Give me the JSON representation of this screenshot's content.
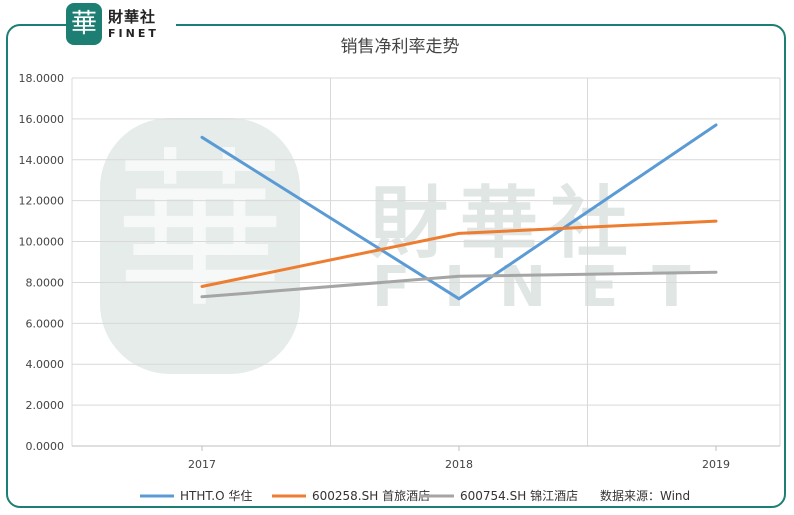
{
  "logo": {
    "badge_char": "華",
    "name_cn": "財華社",
    "name_en": "FINET"
  },
  "watermark": {
    "badge_char": "華",
    "name_cn": "財華社",
    "name_en": "FINET"
  },
  "colors": {
    "frame": "#1d7f73",
    "grid": "#d9d9d9",
    "axis": "#bfbfbf"
  },
  "chart_data": {
    "type": "line",
    "title": "销售净利率走势",
    "xlabel": "",
    "ylabel": "",
    "categories": [
      "2017",
      "2018",
      "2019"
    ],
    "ylim": [
      0,
      18
    ],
    "ytick_values": [
      0,
      2,
      4,
      6,
      8,
      10,
      12,
      14,
      16,
      18
    ],
    "ytick_labels": [
      "0.0000",
      "2.0000",
      "4.0000",
      "6.0000",
      "8.0000",
      "10.0000",
      "12.0000",
      "14.0000",
      "16.0000",
      "18.0000"
    ],
    "grid": true,
    "legend_position": "bottom",
    "series": [
      {
        "name": "HTHT.O 华住",
        "color": "#5b9bd5",
        "values": [
          15.1,
          7.2,
          15.7
        ]
      },
      {
        "name": "600258.SH 首旅酒店",
        "color": "#ed7d31",
        "values": [
          7.8,
          10.4,
          11.0
        ]
      },
      {
        "name": "600754.SH 锦江酒店",
        "color": "#a5a5a5",
        "values": [
          7.3,
          8.3,
          8.5
        ]
      }
    ],
    "source_note": "数据来源：Wind"
  }
}
